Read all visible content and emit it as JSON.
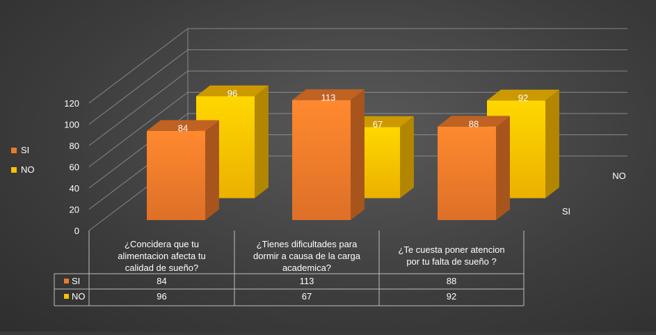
{
  "chart_data": {
    "type": "bar",
    "style": "3d-clustered-column-with-data-table",
    "categories": [
      [
        "¿Concidera que tu",
        "alimentacion afecta tu",
        "calidad de sueño?"
      ],
      [
        "¿Tienes dificultades para",
        "dormir a causa de la carga",
        "academica?"
      ],
      [
        "¿Te cuesta poner atencion",
        "por tu falta de sueño ?"
      ]
    ],
    "series": [
      {
        "name": "SI",
        "values": [
          84,
          113,
          88
        ],
        "color": "#f07a2a"
      },
      {
        "name": "NO",
        "values": [
          96,
          67,
          92
        ],
        "color": "#ffc000"
      }
    ],
    "yticks": [
      "0",
      "20",
      "40",
      "60",
      "80",
      "100",
      "120"
    ],
    "ylim": [
      0,
      120
    ],
    "legend_position": "left",
    "depth_axis_labels": [
      "SI",
      "NO"
    ],
    "data_table": true,
    "grid": true
  }
}
